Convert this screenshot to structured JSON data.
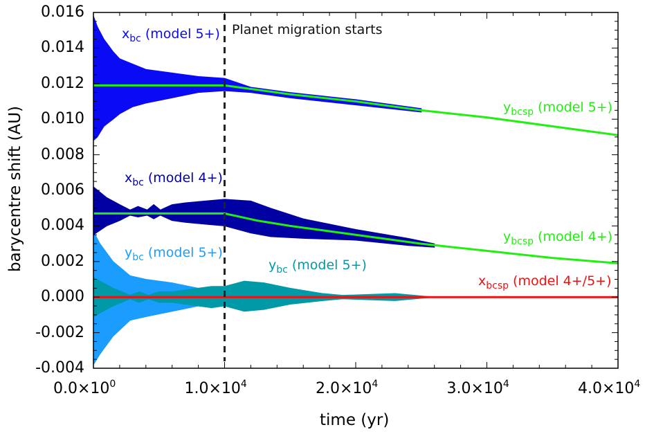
{
  "chart_data": {
    "type": "area",
    "xlabel": "time (yr)",
    "ylabel": "barycentre shift (AU)",
    "xlim": [
      0,
      40000
    ],
    "ylim": [
      -0.004,
      0.016
    ],
    "grid": false,
    "x_ticks": [
      {
        "value": 0,
        "base": "0.0×10",
        "exp": "0"
      },
      {
        "value": 10000,
        "base": "1.0×10",
        "exp": "4"
      },
      {
        "value": 20000,
        "base": "2.0×10",
        "exp": "4"
      },
      {
        "value": 30000,
        "base": "3.0×10",
        "exp": "4"
      },
      {
        "value": 40000,
        "base": "4.0×10",
        "exp": "4"
      }
    ],
    "y_ticks": [
      {
        "value": 0.016,
        "label": "0.016"
      },
      {
        "value": 0.014,
        "label": "0.014"
      },
      {
        "value": 0.012,
        "label": "0.012"
      },
      {
        "value": 0.01,
        "label": "0.010"
      },
      {
        "value": 0.008,
        "label": "0.008"
      },
      {
        "value": 0.006,
        "label": "0.006"
      },
      {
        "value": 0.004,
        "label": "0.004"
      },
      {
        "value": 0.002,
        "label": "0.002"
      },
      {
        "value": 0.0,
        "label": "0.000"
      },
      {
        "value": -0.002,
        "label": "-0.002"
      },
      {
        "value": -0.004,
        "label": "-0.004"
      }
    ],
    "annotation": {
      "x": 10000,
      "text": "Planet migration starts",
      "style": "dashed",
      "color": "#222222"
    },
    "envelopes": [
      {
        "id": "xbc5",
        "base": "x",
        "sub": "bc",
        "suffix": " (model 5+)",
        "color": "#0a0af5",
        "points": [
          [
            0,
            0.0158,
            0.0088
          ],
          [
            300,
            0.0152,
            0.009
          ],
          [
            800,
            0.0145,
            0.0096
          ],
          [
            1500,
            0.0138,
            0.01
          ],
          [
            2000,
            0.0134,
            0.0103
          ],
          [
            3000,
            0.0131,
            0.0107
          ],
          [
            4000,
            0.0128,
            0.0109
          ],
          [
            6000,
            0.0126,
            0.0112
          ],
          [
            8000,
            0.0124,
            0.0115
          ],
          [
            10000,
            0.0123,
            0.0116
          ],
          [
            12000,
            0.0118,
            0.0115
          ],
          [
            15000,
            0.0115,
            0.0112
          ],
          [
            20000,
            0.0111,
            0.0108
          ],
          [
            25000,
            0.0106,
            0.0104
          ]
        ]
      },
      {
        "id": "xbc4",
        "base": "x",
        "sub": "bc",
        "suffix": " (model 4+)",
        "color": "#0000a3",
        "points": [
          [
            0,
            0.0062,
            0.0035
          ],
          [
            1000,
            0.0056,
            0.004
          ],
          [
            2000,
            0.0052,
            0.0043
          ],
          [
            2800,
            0.0049,
            0.0046
          ],
          [
            3400,
            0.0051,
            0.0045
          ],
          [
            4100,
            0.0049,
            0.0046
          ],
          [
            4600,
            0.0052,
            0.0044
          ],
          [
            5100,
            0.0049,
            0.0046
          ],
          [
            6000,
            0.0052,
            0.0043
          ],
          [
            7000,
            0.0053,
            0.0042
          ],
          [
            8500,
            0.0054,
            0.0041
          ],
          [
            10000,
            0.0055,
            0.004
          ],
          [
            12000,
            0.0054,
            0.0036
          ],
          [
            13500,
            0.005,
            0.0034
          ],
          [
            16000,
            0.0044,
            0.0033
          ],
          [
            20000,
            0.0038,
            0.0032
          ],
          [
            24000,
            0.0033,
            0.0029
          ],
          [
            26000,
            0.003,
            0.0028
          ]
        ]
      },
      {
        "id": "ybc5a",
        "base": "y",
        "sub": "bc",
        "suffix": " (model 5+)",
        "color": "#1a9dff",
        "points": [
          [
            0,
            0.0037,
            -0.0038
          ],
          [
            500,
            0.003,
            -0.0032
          ],
          [
            1500,
            0.002,
            -0.0022
          ],
          [
            2800,
            0.0012,
            -0.0013
          ],
          [
            4000,
            0.001,
            -0.0011
          ],
          [
            6000,
            0.0008,
            -0.0008
          ],
          [
            8000,
            0.0005,
            -0.0005
          ],
          [
            9500,
            0.0003,
            -0.0003
          ]
        ]
      },
      {
        "id": "ybc5b",
        "base": "y",
        "sub": "bc",
        "suffix": " (model 5+)",
        "color": "#0099a8",
        "points": [
          [
            0,
            0.0011,
            -0.0011
          ],
          [
            1500,
            0.0005,
            -0.0005
          ],
          [
            2800,
            0.0001,
            -0.0001
          ],
          [
            3500,
            0.0003,
            -0.0003
          ],
          [
            4200,
            0.0001,
            -0.0001
          ],
          [
            5000,
            0.0003,
            -0.0003
          ],
          [
            6000,
            0.0003,
            -0.0003
          ],
          [
            7000,
            0.0004,
            -0.0004
          ],
          [
            9000,
            0.0006,
            -0.0006
          ],
          [
            10000,
            0.0006,
            -0.0005
          ],
          [
            11500,
            0.0009,
            -0.0008
          ],
          [
            13000,
            0.0008,
            -0.0007
          ],
          [
            15000,
            0.0005,
            -0.0004
          ],
          [
            17500,
            0.0002,
            -0.0002
          ],
          [
            19000,
            0.0001,
            -0.0001
          ],
          [
            23000,
            0.0002,
            -0.0002
          ],
          [
            26000,
            0,
            0
          ]
        ]
      }
    ],
    "series": [
      {
        "id": "ybcsp5",
        "base": "y",
        "sub": "bcsp",
        "suffix": " (model 5+)",
        "color": "#22ee11",
        "x": [
          0,
          10000,
          15000,
          20000,
          25000,
          30000,
          35000,
          40000
        ],
        "y": [
          0.0119,
          0.0119,
          0.0114,
          0.011,
          0.0105,
          0.0101,
          0.0096,
          0.0091
        ]
      },
      {
        "id": "ybcsp4",
        "base": "y",
        "sub": "bcsp",
        "suffix": " (model 4+)",
        "color": "#22ee11",
        "x": [
          0,
          10000,
          12500,
          15000,
          20000,
          25000,
          30000,
          35000,
          40000
        ],
        "y": [
          0.0047,
          0.0047,
          0.0043,
          0.004,
          0.0035,
          0.003,
          0.0026,
          0.0022,
          0.0019
        ]
      },
      {
        "id": "xbcsp",
        "base": "x",
        "sub": "bcsp",
        "suffix": " (model 4+/5+)",
        "color": "#ee1111",
        "x": [
          0,
          40000
        ],
        "y": [
          0,
          0
        ]
      }
    ]
  }
}
